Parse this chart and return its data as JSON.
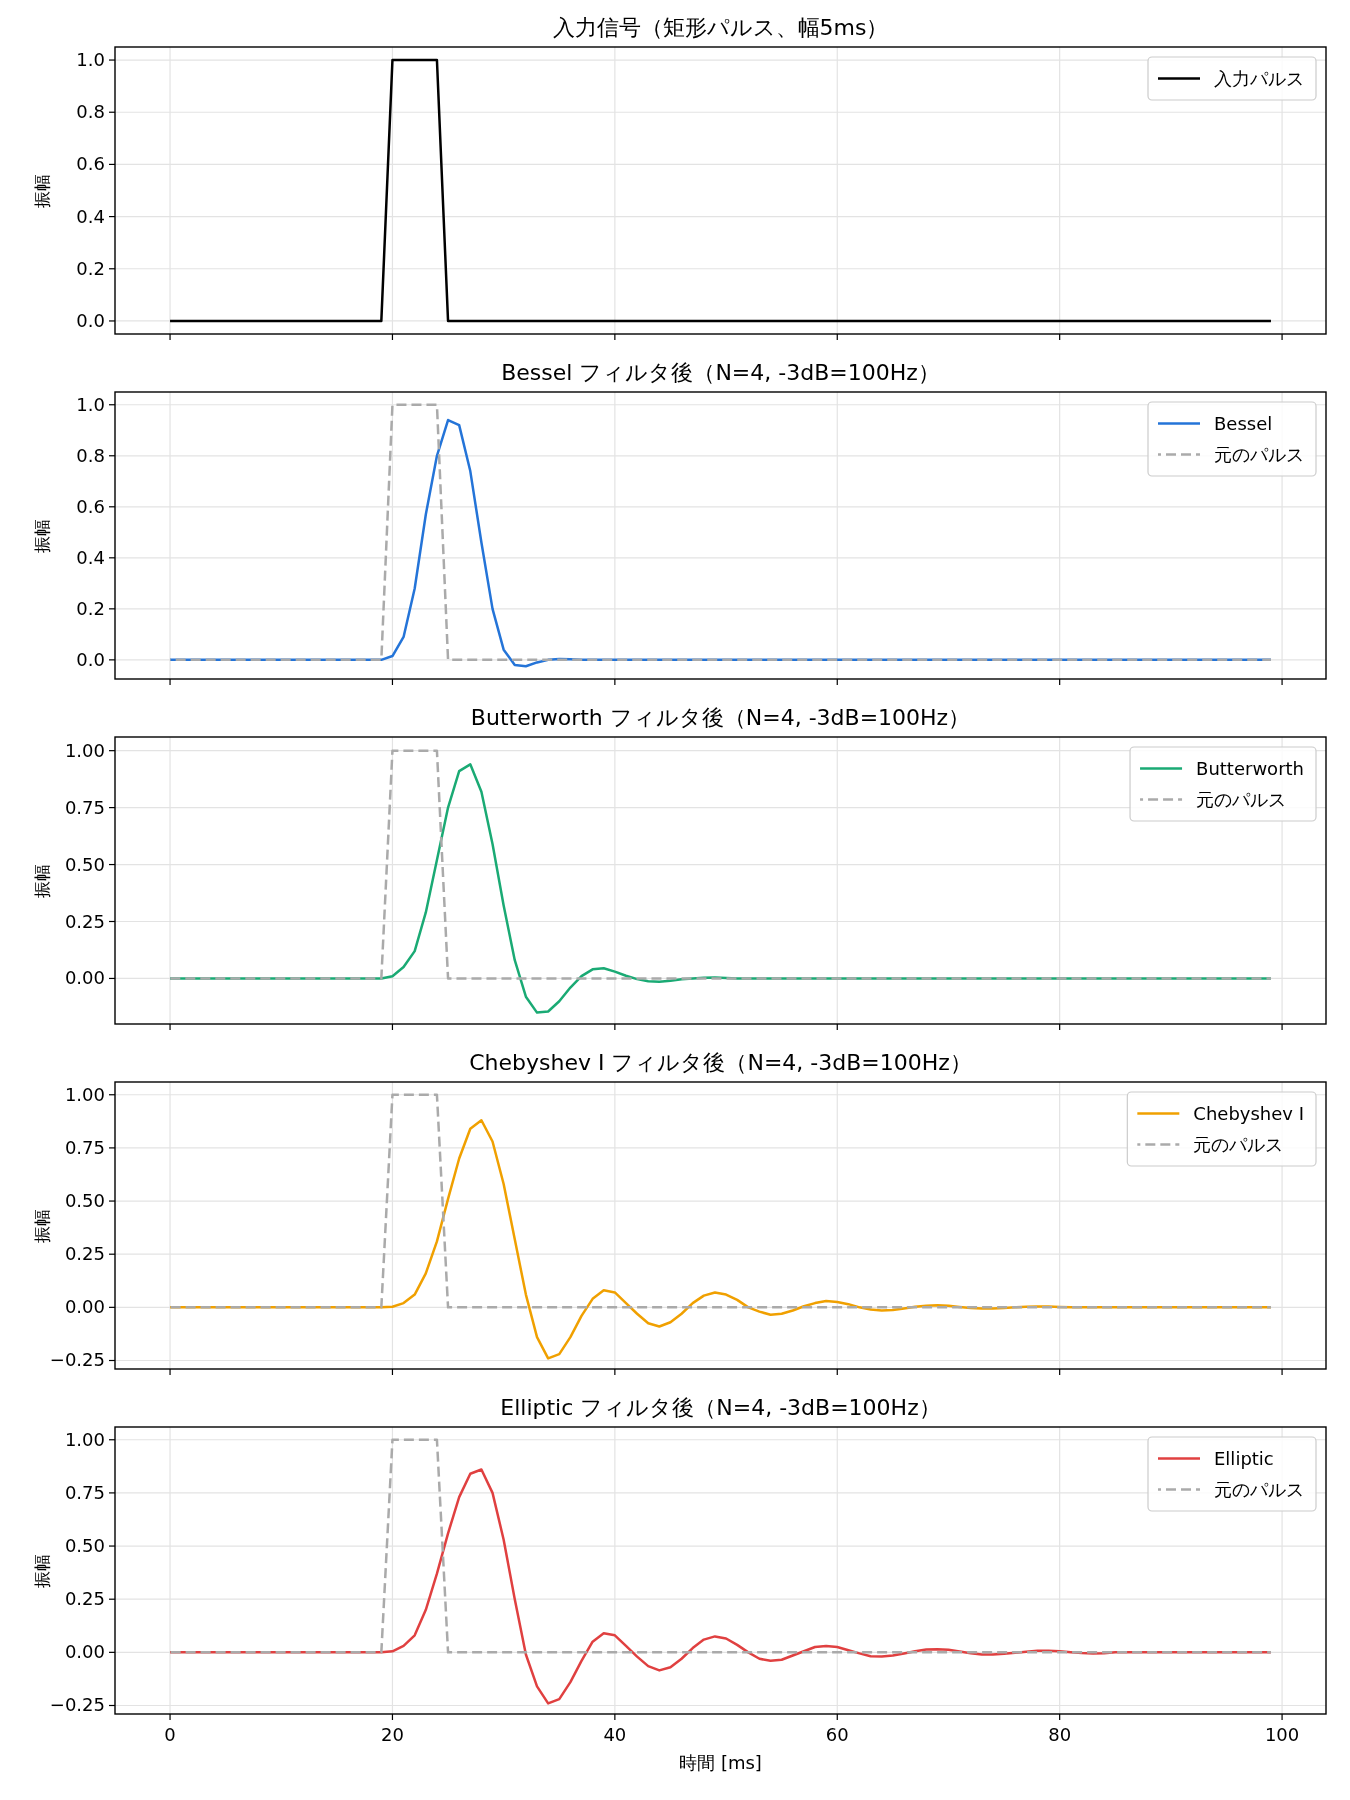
{
  "chart_data": [
    {
      "type": "line",
      "title": "入力信号（矩形パルス、幅5ms）",
      "ylabel": "振幅",
      "grid": true,
      "legend": "top right",
      "tick_labels": "y",
      "xlim": [
        -4.95,
        103.95
      ],
      "xticks": [
        0,
        20,
        40,
        60,
        80,
        100
      ],
      "ylim": [
        -0.05,
        1.05
      ],
      "yticks": [
        {
          "value": 0,
          "label": "0.0"
        },
        {
          "value": 0.2,
          "label": "0.2"
        },
        {
          "value": 0.4,
          "label": "0.4"
        },
        {
          "value": 0.6,
          "label": "0.6"
        },
        {
          "value": 0.8,
          "label": "0.8"
        },
        {
          "value": 1,
          "label": "1.0"
        }
      ],
      "series": [
        {
          "name": "入力パルス",
          "color": "#000000",
          "line_style": "solid",
          "x": [
            0,
            19,
            20,
            24,
            25,
            99
          ],
          "values": [
            0,
            0,
            1,
            1,
            0,
            0
          ]
        }
      ]
    },
    {
      "type": "line",
      "title": "Bessel フィルタ後（N=4, -3dB=100Hz）",
      "ylabel": "振幅",
      "grid": true,
      "legend": "top right",
      "tick_labels": "y",
      "xlim": [
        -4.95,
        103.95
      ],
      "xticks": [
        0,
        20,
        40,
        60,
        80,
        100
      ],
      "ylim": [
        -0.075,
        1.05
      ],
      "yticks": [
        {
          "value": 0,
          "label": "0.0"
        },
        {
          "value": 0.2,
          "label": "0.2"
        },
        {
          "value": 0.4,
          "label": "0.4"
        },
        {
          "value": 0.6,
          "label": "0.6"
        },
        {
          "value": 0.8,
          "label": "0.8"
        },
        {
          "value": 1,
          "label": "1.0"
        }
      ],
      "series": [
        {
          "name": "Bessel",
          "color": "#2474d8",
          "line_style": "solid",
          "x": [
            0,
            19,
            20,
            21,
            22,
            23,
            24,
            25,
            26,
            27,
            28,
            29,
            30,
            31,
            32,
            33,
            34,
            35,
            36,
            37,
            99
          ],
          "values": [
            0,
            0,
            0.015,
            0.09,
            0.28,
            0.57,
            0.8,
            0.94,
            0.92,
            0.74,
            0.46,
            0.2,
            0.04,
            -0.02,
            -0.025,
            -0.01,
            0,
            0.003,
            0.002,
            0,
            0
          ]
        },
        {
          "name": "元のパルス",
          "color": "#aaaaaa",
          "line_style": "dashed",
          "x": [
            0,
            19,
            20,
            24,
            25,
            99
          ],
          "values": [
            0,
            0,
            1,
            1,
            0,
            0
          ]
        }
      ]
    },
    {
      "type": "line",
      "title": "Butterworth フィルタ後（N=4, -3dB=100Hz）",
      "ylabel": "振幅",
      "grid": true,
      "legend": "top right",
      "tick_labels": "y",
      "xlim": [
        -4.95,
        103.95
      ],
      "xticks": [
        0,
        20,
        40,
        60,
        80,
        100
      ],
      "ylim": [
        -0.2,
        1.06
      ],
      "yticks": [
        {
          "value": 0,
          "label": "0.00"
        },
        {
          "value": 0.25,
          "label": "0.25"
        },
        {
          "value": 0.5,
          "label": "0.50"
        },
        {
          "value": 0.75,
          "label": "0.75"
        },
        {
          "value": 1,
          "label": "1.00"
        }
      ],
      "series": [
        {
          "name": "Butterworth",
          "color": "#1aaa74",
          "line_style": "solid",
          "x": [
            0,
            19,
            20,
            21,
            22,
            23,
            24,
            25,
            26,
            27,
            28,
            29,
            30,
            31,
            32,
            33,
            34,
            35,
            36,
            37,
            38,
            39,
            40,
            41,
            42,
            43,
            44,
            45,
            46,
            47,
            48,
            49,
            50,
            51,
            99
          ],
          "values": [
            0,
            0,
            0.01,
            0.05,
            0.12,
            0.29,
            0.52,
            0.75,
            0.91,
            0.94,
            0.82,
            0.59,
            0.32,
            0.08,
            -0.08,
            -0.15,
            -0.145,
            -0.1,
            -0.04,
            0.01,
            0.04,
            0.045,
            0.03,
            0.012,
            -0.003,
            -0.012,
            -0.014,
            -0.01,
            -0.004,
            0,
            0.003,
            0.004,
            0.002,
            0,
            0
          ]
        },
        {
          "name": "元のパルス",
          "color": "#aaaaaa",
          "line_style": "dashed",
          "x": [
            0,
            19,
            20,
            24,
            25,
            99
          ],
          "values": [
            0,
            0,
            1,
            1,
            0,
            0
          ]
        }
      ]
    },
    {
      "type": "line",
      "title": "Chebyshev I フィルタ後（N=4, -3dB=100Hz）",
      "ylabel": "振幅",
      "grid": true,
      "legend": "top right",
      "tick_labels": "y",
      "xlim": [
        -4.95,
        103.95
      ],
      "xticks": [
        0,
        20,
        40,
        60,
        80,
        100
      ],
      "ylim": [
        -0.29,
        1.06
      ],
      "yticks": [
        {
          "value": -0.25,
          "label": "−0.25"
        },
        {
          "value": 0,
          "label": "0.00"
        },
        {
          "value": 0.25,
          "label": "0.25"
        },
        {
          "value": 0.5,
          "label": "0.50"
        },
        {
          "value": 0.75,
          "label": "0.75"
        },
        {
          "value": 1,
          "label": "1.00"
        }
      ],
      "series": [
        {
          "name": "Chebyshev I",
          "color": "#f0a000",
          "line_style": "solid",
          "x": [
            0,
            19,
            20,
            21,
            22,
            23,
            24,
            25,
            26,
            27,
            28,
            29,
            30,
            31,
            32,
            33,
            34,
            35,
            36,
            37,
            38,
            39,
            40,
            41,
            42,
            43,
            44,
            45,
            46,
            47,
            48,
            49,
            50,
            51,
            52,
            53,
            54,
            55,
            56,
            57,
            58,
            59,
            60,
            61,
            62,
            63,
            64,
            65,
            66,
            67,
            68,
            69,
            70,
            71,
            72,
            73,
            74,
            75,
            76,
            77,
            78,
            79,
            80,
            81,
            99
          ],
          "values": [
            0,
            0,
            0.003,
            0.02,
            0.06,
            0.16,
            0.31,
            0.51,
            0.7,
            0.84,
            0.88,
            0.78,
            0.58,
            0.32,
            0.06,
            -0.14,
            -0.24,
            -0.22,
            -0.14,
            -0.04,
            0.04,
            0.08,
            0.07,
            0.02,
            -0.03,
            -0.075,
            -0.09,
            -0.07,
            -0.03,
            0.02,
            0.055,
            0.07,
            0.06,
            0.035,
            0,
            -0.02,
            -0.035,
            -0.03,
            -0.015,
            0.005,
            0.02,
            0.03,
            0.025,
            0.015,
            0,
            -0.01,
            -0.015,
            -0.012,
            -0.005,
            0.003,
            0.008,
            0.01,
            0.008,
            0.002,
            -0.003,
            -0.006,
            -0.005,
            -0.003,
            0,
            0.003,
            0.004,
            0.004,
            0.002,
            0,
            0
          ]
        },
        {
          "name": "元のパルス",
          "color": "#aaaaaa",
          "line_style": "dashed",
          "x": [
            0,
            19,
            20,
            24,
            25,
            99
          ],
          "values": [
            0,
            0,
            1,
            1,
            0,
            0
          ]
        }
      ]
    },
    {
      "type": "line",
      "title": "Elliptic フィルタ後（N=4, -3dB=100Hz）",
      "ylabel": "振幅",
      "xlabel": "時間 [ms]",
      "grid": true,
      "legend": "top right",
      "xlim": [
        -4.95,
        103.95
      ],
      "xticks": [
        0,
        20,
        40,
        60,
        80,
        100
      ],
      "ylim": [
        -0.29,
        1.06
      ],
      "yticks": [
        {
          "value": -0.25,
          "label": "−0.25"
        },
        {
          "value": 0,
          "label": "0.00"
        },
        {
          "value": 0.25,
          "label": "0.25"
        },
        {
          "value": 0.5,
          "label": "0.50"
        },
        {
          "value": 0.75,
          "label": "0.75"
        },
        {
          "value": 1,
          "label": "1.00"
        }
      ],
      "series": [
        {
          "name": "Elliptic",
          "color": "#e04040",
          "line_style": "solid",
          "x": [
            0,
            19,
            20,
            21,
            22,
            23,
            24,
            25,
            26,
            27,
            28,
            29,
            30,
            31,
            32,
            33,
            34,
            35,
            36,
            37,
            38,
            39,
            40,
            41,
            42,
            43,
            44,
            45,
            46,
            47,
            48,
            49,
            50,
            51,
            52,
            53,
            54,
            55,
            56,
            57,
            58,
            59,
            60,
            61,
            62,
            63,
            64,
            65,
            66,
            67,
            68,
            69,
            70,
            71,
            72,
            73,
            74,
            75,
            76,
            77,
            78,
            79,
            80,
            81,
            82,
            83,
            84,
            85,
            99
          ],
          "values": [
            0,
            0,
            0.005,
            0.03,
            0.08,
            0.2,
            0.37,
            0.56,
            0.73,
            0.84,
            0.86,
            0.75,
            0.53,
            0.25,
            -0.01,
            -0.16,
            -0.24,
            -0.22,
            -0.14,
            -0.04,
            0.05,
            0.09,
            0.08,
            0.03,
            -0.02,
            -0.065,
            -0.085,
            -0.07,
            -0.03,
            0.02,
            0.06,
            0.075,
            0.065,
            0.035,
            0,
            -0.03,
            -0.04,
            -0.035,
            -0.015,
            0.005,
            0.025,
            0.03,
            0.025,
            0.01,
            -0.005,
            -0.018,
            -0.02,
            -0.015,
            -0.005,
            0.005,
            0.013,
            0.015,
            0.012,
            0.004,
            -0.004,
            -0.01,
            -0.01,
            -0.007,
            -0.002,
            0.003,
            0.007,
            0.007,
            0.005,
            0.001,
            -0.003,
            -0.005,
            -0.004,
            0,
            0
          ]
        },
        {
          "name": "元のパルス",
          "color": "#aaaaaa",
          "line_style": "dashed",
          "x": [
            0,
            19,
            20,
            24,
            25,
            99
          ],
          "values": [
            0,
            0,
            1,
            1,
            0,
            0
          ]
        }
      ]
    }
  ]
}
